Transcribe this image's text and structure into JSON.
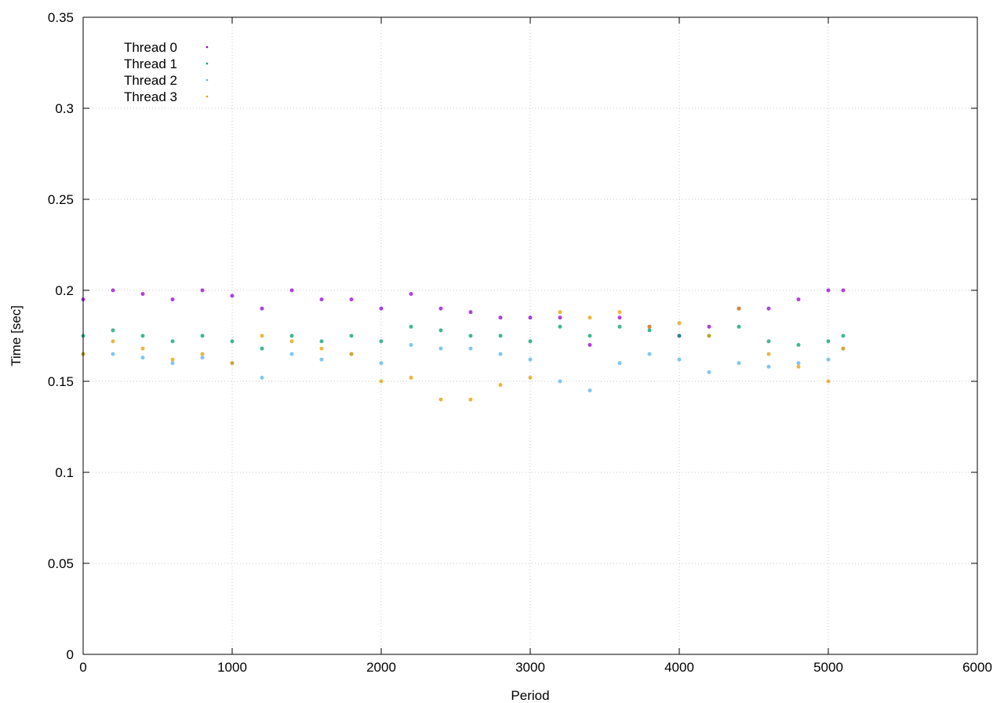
{
  "chart_data": {
    "type": "scatter",
    "title": "",
    "xlabel": "Period",
    "ylabel": "Time [sec]",
    "xlim": [
      0,
      6000
    ],
    "ylim": [
      0,
      0.35
    ],
    "xticks": [
      0,
      1000,
      2000,
      3000,
      4000,
      5000,
      6000
    ],
    "xtick_labels": [
      "0",
      "1000",
      "2000",
      "3000",
      "4000",
      "5000",
      "6000"
    ],
    "yticks": [
      0,
      0.05,
      0.1,
      0.15,
      0.2,
      0.25,
      0.3,
      0.35
    ],
    "ytick_labels": [
      "0",
      "0.05",
      "0.1",
      "0.15",
      "0.2",
      "0.25",
      "0.3",
      "0.35"
    ],
    "grid": true,
    "legend_position": "top-left",
    "series": [
      {
        "name": "Thread 0",
        "color": "#9400d3",
        "x": [
          0,
          200,
          400,
          600,
          800,
          1000,
          1200,
          1400,
          1600,
          1800,
          2000,
          2200,
          2400,
          2600,
          2800,
          3000,
          3200,
          3400,
          3600,
          3800,
          4000,
          4200,
          4400,
          4600,
          4800,
          5000,
          5100
        ],
        "y": [
          0.195,
          0.2,
          0.198,
          0.195,
          0.2,
          0.197,
          0.19,
          0.2,
          0.195,
          0.195,
          0.19,
          0.198,
          0.19,
          0.188,
          0.185,
          0.185,
          0.185,
          0.17,
          0.185,
          0.18,
          0.175,
          0.18,
          0.19,
          0.19,
          0.195,
          0.2,
          0.2
        ]
      },
      {
        "name": "Thread 1",
        "color": "#009e73",
        "x": [
          0,
          200,
          400,
          600,
          800,
          1000,
          1200,
          1400,
          1600,
          1800,
          2000,
          2200,
          2400,
          2600,
          2800,
          3000,
          3200,
          3400,
          3600,
          3800,
          4000,
          4200,
          4400,
          4600,
          4800,
          5000,
          5100
        ],
        "y": [
          0.175,
          0.178,
          0.175,
          0.172,
          0.175,
          0.172,
          0.168,
          0.175,
          0.172,
          0.175,
          0.172,
          0.18,
          0.178,
          0.175,
          0.175,
          0.172,
          0.18,
          0.175,
          0.18,
          0.178,
          0.175,
          0.175,
          0.18,
          0.172,
          0.17,
          0.172,
          0.175
        ]
      },
      {
        "name": "Thread 2",
        "color": "#56b4e9",
        "x": [
          0,
          200,
          400,
          600,
          800,
          1000,
          1200,
          1400,
          1600,
          1800,
          2000,
          2200,
          2400,
          2600,
          2800,
          3000,
          3200,
          3400,
          3600,
          3800,
          4000,
          4200,
          4400,
          4600,
          4800,
          5000,
          5100
        ],
        "y": [
          0.165,
          0.165,
          0.163,
          0.16,
          0.163,
          0.16,
          0.152,
          0.165,
          0.162,
          0.165,
          0.16,
          0.17,
          0.168,
          0.168,
          0.165,
          0.162,
          0.15,
          0.145,
          0.16,
          0.165,
          0.162,
          0.155,
          0.16,
          0.158,
          0.16,
          0.162,
          0.168
        ]
      },
      {
        "name": "Thread 3",
        "color": "#e69f00",
        "x": [
          0,
          200,
          400,
          600,
          800,
          1000,
          1200,
          1400,
          1600,
          1800,
          2000,
          2200,
          2400,
          2600,
          2800,
          3000,
          3200,
          3400,
          3600,
          3800,
          4000,
          4200,
          4400,
          4600,
          4800,
          5000,
          5100
        ],
        "y": [
          0.165,
          0.172,
          0.168,
          0.162,
          0.165,
          0.16,
          0.175,
          0.172,
          0.168,
          0.165,
          0.15,
          0.152,
          0.14,
          0.14,
          0.148,
          0.152,
          0.188,
          0.185,
          0.188,
          0.18,
          0.182,
          0.175,
          0.19,
          0.165,
          0.158,
          0.15,
          0.168
        ]
      }
    ]
  }
}
